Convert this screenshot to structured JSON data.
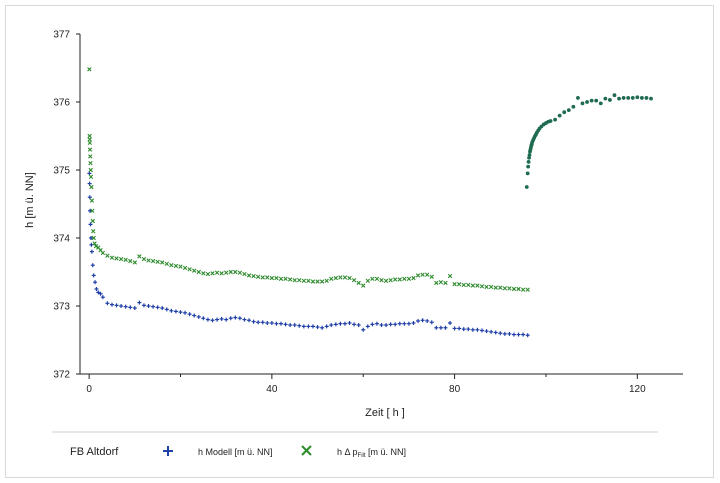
{
  "chart_data": {
    "type": "scatter",
    "title": "",
    "xlabel": "Zeit [ h ]",
    "ylabel": "h [m ü. NN]",
    "xlim": [
      -2,
      130
    ],
    "ylim": [
      372,
      377
    ],
    "xticks": [
      0,
      40,
      80,
      120
    ],
    "yticks": [
      372,
      373,
      374,
      375,
      376,
      377
    ],
    "grid": false,
    "legend_position": "bottom",
    "legend": {
      "title": "FB Altdorf",
      "entries": [
        {
          "key": "modell",
          "label": "h Modell [m ü. NN]",
          "marker": "+",
          "color": "#1f3fa8"
        },
        {
          "key": "messung",
          "label_prefix": "h Δ p",
          "label_subscript": "Filt",
          "label_suffix": " [m ü. NN]",
          "marker": "x",
          "color": "#2e8b2e"
        }
      ]
    },
    "series": [
      {
        "key": "modell",
        "marker": "+",
        "color": "#1f3fa8",
        "points": [
          [
            0.05,
            374.95
          ],
          [
            0.1,
            374.8
          ],
          [
            0.15,
            374.6
          ],
          [
            0.2,
            374.4
          ],
          [
            0.3,
            374.2
          ],
          [
            0.4,
            374.0
          ],
          [
            0.5,
            373.9
          ],
          [
            0.6,
            373.8
          ],
          [
            0.8,
            373.6
          ],
          [
            1.0,
            373.45
          ],
          [
            1.3,
            373.35
          ],
          [
            1.6,
            373.25
          ],
          [
            2.0,
            373.2
          ],
          [
            2.5,
            373.18
          ],
          [
            3.0,
            373.13
          ],
          [
            4,
            373.04
          ],
          [
            5,
            373.02
          ],
          [
            6,
            373.01
          ],
          [
            7,
            373.0
          ],
          [
            8,
            372.99
          ],
          [
            9,
            372.98
          ],
          [
            10,
            372.97
          ],
          [
            11,
            373.05
          ],
          [
            12,
            373.01
          ],
          [
            13,
            373.0
          ],
          [
            14,
            372.99
          ],
          [
            15,
            372.98
          ],
          [
            16,
            372.97
          ],
          [
            17,
            372.95
          ],
          [
            18,
            372.93
          ],
          [
            19,
            372.92
          ],
          [
            20,
            372.91
          ],
          [
            21,
            372.9
          ],
          [
            22,
            372.88
          ],
          [
            23,
            372.86
          ],
          [
            24,
            372.84
          ],
          [
            25,
            372.82
          ],
          [
            26,
            372.8
          ],
          [
            27,
            372.79
          ],
          [
            28,
            372.8
          ],
          [
            29,
            372.81
          ],
          [
            30,
            372.8
          ],
          [
            31,
            372.82
          ],
          [
            32,
            372.83
          ],
          [
            33,
            372.82
          ],
          [
            34,
            372.8
          ],
          [
            35,
            372.79
          ],
          [
            36,
            372.77
          ],
          [
            37,
            372.76
          ],
          [
            38,
            372.76
          ],
          [
            39,
            372.75
          ],
          [
            40,
            372.75
          ],
          [
            41,
            372.74
          ],
          [
            42,
            372.74
          ],
          [
            43,
            372.73
          ],
          [
            44,
            372.72
          ],
          [
            45,
            372.72
          ],
          [
            46,
            372.71
          ],
          [
            47,
            372.7
          ],
          [
            48,
            372.7
          ],
          [
            49,
            372.7
          ],
          [
            50,
            372.69
          ],
          [
            51,
            372.68
          ],
          [
            52,
            372.7
          ],
          [
            53,
            372.72
          ],
          [
            54,
            372.73
          ],
          [
            55,
            372.74
          ],
          [
            56,
            372.74
          ],
          [
            57,
            372.75
          ],
          [
            58,
            372.73
          ],
          [
            59,
            372.72
          ],
          [
            60,
            372.65
          ],
          [
            61,
            372.7
          ],
          [
            62,
            372.73
          ],
          [
            63,
            372.74
          ],
          [
            64,
            372.72
          ],
          [
            65,
            372.72
          ],
          [
            66,
            372.73
          ],
          [
            67,
            372.73
          ],
          [
            68,
            372.74
          ],
          [
            69,
            372.74
          ],
          [
            70,
            372.74
          ],
          [
            71,
            372.75
          ],
          [
            72,
            372.78
          ],
          [
            73,
            372.79
          ],
          [
            74,
            372.78
          ],
          [
            75,
            372.76
          ],
          [
            76,
            372.68
          ],
          [
            77,
            372.68
          ],
          [
            78,
            372.68
          ],
          [
            79,
            372.75
          ],
          [
            80,
            372.67
          ],
          [
            81,
            372.67
          ],
          [
            82,
            372.66
          ],
          [
            83,
            372.66
          ],
          [
            84,
            372.65
          ],
          [
            85,
            372.65
          ],
          [
            86,
            372.64
          ],
          [
            87,
            372.63
          ],
          [
            88,
            372.62
          ],
          [
            89,
            372.61
          ],
          [
            90,
            372.6
          ],
          [
            91,
            372.59
          ],
          [
            92,
            372.59
          ],
          [
            93,
            372.58
          ],
          [
            94,
            372.58
          ],
          [
            95,
            372.58
          ],
          [
            96,
            372.57
          ]
        ]
      },
      {
        "key": "messung",
        "marker": "x",
        "color": "#2e8b2e",
        "points": [
          [
            0.05,
            376.48
          ],
          [
            0.1,
            375.5
          ],
          [
            0.12,
            375.45
          ],
          [
            0.15,
            375.4
          ],
          [
            0.2,
            375.3
          ],
          [
            0.25,
            375.2
          ],
          [
            0.3,
            375.1
          ],
          [
            0.35,
            375.0
          ],
          [
            0.4,
            374.9
          ],
          [
            0.5,
            374.75
          ],
          [
            0.6,
            374.55
          ],
          [
            0.7,
            374.4
          ],
          [
            0.8,
            374.25
          ],
          [
            0.9,
            374.1
          ],
          [
            1.0,
            374.0
          ],
          [
            1.2,
            373.92
          ],
          [
            1.5,
            373.88
          ],
          [
            2.0,
            373.86
          ],
          [
            2.5,
            373.82
          ],
          [
            3,
            373.78
          ],
          [
            4,
            373.74
          ],
          [
            5,
            373.71
          ],
          [
            6,
            373.7
          ],
          [
            7,
            373.69
          ],
          [
            8,
            373.68
          ],
          [
            9,
            373.66
          ],
          [
            10,
            373.64
          ],
          [
            11,
            373.73
          ],
          [
            12,
            373.69
          ],
          [
            13,
            373.67
          ],
          [
            14,
            373.66
          ],
          [
            15,
            373.65
          ],
          [
            16,
            373.64
          ],
          [
            17,
            373.62
          ],
          [
            18,
            373.6
          ],
          [
            19,
            373.59
          ],
          [
            20,
            373.58
          ],
          [
            21,
            373.56
          ],
          [
            22,
            373.54
          ],
          [
            23,
            373.52
          ],
          [
            24,
            373.5
          ],
          [
            25,
            373.48
          ],
          [
            26,
            373.47
          ],
          [
            27,
            373.48
          ],
          [
            28,
            373.49
          ],
          [
            29,
            373.48
          ],
          [
            30,
            373.49
          ],
          [
            31,
            373.5
          ],
          [
            32,
            373.5
          ],
          [
            33,
            373.49
          ],
          [
            34,
            373.47
          ],
          [
            35,
            373.45
          ],
          [
            36,
            373.44
          ],
          [
            37,
            373.43
          ],
          [
            38,
            373.42
          ],
          [
            39,
            373.42
          ],
          [
            40,
            373.41
          ],
          [
            41,
            373.41
          ],
          [
            42,
            373.4
          ],
          [
            43,
            373.4
          ],
          [
            44,
            373.39
          ],
          [
            45,
            373.38
          ],
          [
            46,
            373.38
          ],
          [
            47,
            373.37
          ],
          [
            48,
            373.37
          ],
          [
            49,
            373.36
          ],
          [
            50,
            373.36
          ],
          [
            51,
            373.36
          ],
          [
            52,
            373.37
          ],
          [
            53,
            373.4
          ],
          [
            54,
            373.41
          ],
          [
            55,
            373.42
          ],
          [
            56,
            373.42
          ],
          [
            57,
            373.41
          ],
          [
            58,
            373.38
          ],
          [
            59,
            373.34
          ],
          [
            60,
            373.3
          ],
          [
            61,
            373.37
          ],
          [
            62,
            373.4
          ],
          [
            63,
            373.4
          ],
          [
            64,
            373.38
          ],
          [
            65,
            373.37
          ],
          [
            66,
            373.38
          ],
          [
            67,
            373.39
          ],
          [
            68,
            373.39
          ],
          [
            69,
            373.4
          ],
          [
            70,
            373.4
          ],
          [
            71,
            373.41
          ],
          [
            72,
            373.45
          ],
          [
            73,
            373.46
          ],
          [
            74,
            373.46
          ],
          [
            75,
            373.43
          ],
          [
            76,
            373.34
          ],
          [
            77,
            373.35
          ],
          [
            78,
            373.34
          ],
          [
            79,
            373.44
          ],
          [
            80,
            373.32
          ],
          [
            81,
            373.32
          ],
          [
            82,
            373.31
          ],
          [
            83,
            373.31
          ],
          [
            84,
            373.3
          ],
          [
            85,
            373.3
          ],
          [
            86,
            373.29
          ],
          [
            87,
            373.28
          ],
          [
            88,
            373.28
          ],
          [
            89,
            373.27
          ],
          [
            90,
            373.27
          ],
          [
            91,
            373.26
          ],
          [
            92,
            373.26
          ],
          [
            93,
            373.25
          ],
          [
            94,
            373.25
          ],
          [
            95,
            373.24
          ],
          [
            96,
            373.24
          ]
        ]
      },
      {
        "key": "recovery",
        "marker": "dot",
        "color": "#1f6b4f",
        "points": [
          [
            95.8,
            374.75
          ],
          [
            96.0,
            374.95
          ],
          [
            96.1,
            375.05
          ],
          [
            96.2,
            375.12
          ],
          [
            96.3,
            375.18
          ],
          [
            96.4,
            375.22
          ],
          [
            96.5,
            375.27
          ],
          [
            96.6,
            375.3
          ],
          [
            96.7,
            375.33
          ],
          [
            96.8,
            375.36
          ],
          [
            96.9,
            375.38
          ],
          [
            97.0,
            375.41
          ],
          [
            97.2,
            375.44
          ],
          [
            97.4,
            375.47
          ],
          [
            97.6,
            375.5
          ],
          [
            97.8,
            375.52
          ],
          [
            98.0,
            375.55
          ],
          [
            98.3,
            375.58
          ],
          [
            98.6,
            375.61
          ],
          [
            99.0,
            375.64
          ],
          [
            99.5,
            375.67
          ],
          [
            100,
            375.69
          ],
          [
            100.5,
            375.71
          ],
          [
            101,
            375.72
          ],
          [
            102,
            375.74
          ],
          [
            103,
            375.8
          ],
          [
            104,
            375.85
          ],
          [
            105,
            375.88
          ],
          [
            106,
            375.93
          ],
          [
            107,
            376.06
          ],
          [
            108,
            375.98
          ],
          [
            109,
            376.0
          ],
          [
            110,
            376.02
          ],
          [
            111,
            376.02
          ],
          [
            112,
            375.98
          ],
          [
            113,
            376.05
          ],
          [
            114,
            376.03
          ],
          [
            115,
            376.1
          ],
          [
            116,
            376.05
          ],
          [
            117,
            376.06
          ],
          [
            118,
            376.06
          ],
          [
            119,
            376.06
          ],
          [
            120,
            376.07
          ],
          [
            121,
            376.06
          ],
          [
            122,
            376.06
          ],
          [
            123,
            376.05
          ]
        ]
      }
    ]
  }
}
